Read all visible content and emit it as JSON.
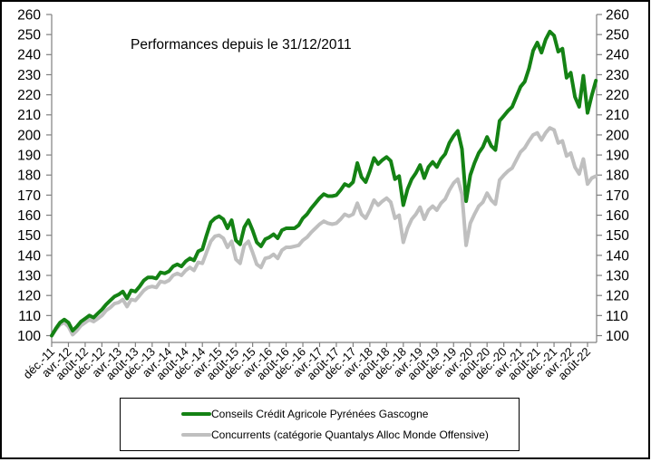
{
  "chart": {
    "title": "Performances depuis le 31/12/2011",
    "y_axis": {
      "min": 100,
      "max": 260,
      "step": 10,
      "ticks": [
        100,
        110,
        120,
        130,
        140,
        150,
        160,
        170,
        180,
        190,
        200,
        210,
        220,
        230,
        240,
        250,
        260
      ]
    },
    "x_axis": {
      "months_per_tick": 4,
      "tick_labels": [
        "déc.-11",
        "avr.-12",
        "août-12",
        "déc.-12",
        "avr.-13",
        "août-13",
        "déc.-13",
        "avr.-14",
        "août-14",
        "déc.-14",
        "avr.-15",
        "août-15",
        "déc.-15",
        "avr.-16",
        "août-16",
        "déc.-16",
        "avr.-17",
        "août-17",
        "déc.-17",
        "avr.-18",
        "août-18",
        "déc.-18",
        "avr.-19",
        "août-19",
        "déc.-19",
        "avr.-20",
        "août-20",
        "déc.-20",
        "avr.-21",
        "août-21",
        "déc.-21",
        "avr.-22",
        "août-22"
      ]
    },
    "axis_color": "#808080",
    "frame_color": "#000000"
  },
  "legend_position": "bottom",
  "chart_data": {
    "type": "line",
    "title": "Performances depuis le 31/12/2011",
    "ylim": [
      100,
      260
    ],
    "y_step": 10,
    "grid": "off",
    "legend_position": "bottom-box",
    "x_start": "déc.-11",
    "x_end": "oct.-22",
    "x_tick_labels": [
      "déc.-11",
      "avr.-12",
      "août-12",
      "déc.-12",
      "avr.-13",
      "août-13",
      "déc.-13",
      "avr.-14",
      "août-14",
      "déc.-14",
      "avr.-15",
      "août-15",
      "déc.-15",
      "avr.-16",
      "août-16",
      "déc.-16",
      "avr.-17",
      "août-17",
      "déc.-17",
      "avr.-18",
      "août-18",
      "déc.-18",
      "avr.-19",
      "août-19",
      "déc.-19",
      "avr.-20",
      "août-20",
      "déc.-20",
      "avr.-21",
      "août-21",
      "déc.-21",
      "avr.-22",
      "août-22"
    ],
    "series": [
      {
        "name": "Conseils Crédit Agricole Pyrénées Gascogne",
        "color": "#148214",
        "values": [
          100,
          103.5,
          106.5,
          108,
          106.5,
          102.5,
          104.5,
          107,
          108.5,
          110,
          109,
          111,
          113,
          115.5,
          117.5,
          119.5,
          120.5,
          122,
          118.5,
          122.5,
          122,
          124.5,
          127.5,
          129,
          129,
          128.5,
          131.5,
          131,
          132,
          134.5,
          135.5,
          134.5,
          137,
          138.5,
          137.5,
          142,
          143,
          150,
          156.5,
          158.5,
          159.5,
          158,
          153.5,
          157.5,
          147.5,
          145.5,
          154,
          157.5,
          152.5,
          146.5,
          144.5,
          148,
          149,
          150.5,
          148.5,
          152.5,
          153.5,
          153.5,
          153.5,
          155,
          158.5,
          160.5,
          163.5,
          166,
          168.5,
          170.5,
          169.5,
          169.5,
          170,
          172.5,
          175.5,
          174.5,
          176.5,
          186,
          179,
          176.5,
          182,
          188.5,
          185.5,
          187.5,
          189,
          187,
          178,
          179.5,
          165,
          173,
          178,
          181,
          185,
          178.5,
          184,
          186.5,
          184,
          188,
          190.5,
          196,
          199.5,
          202,
          193,
          167,
          180,
          186,
          191,
          194,
          199,
          194.5,
          192.5,
          207,
          209.5,
          212,
          214,
          219,
          224,
          226.5,
          233,
          242,
          246,
          241,
          247.5,
          251.5,
          249.5,
          241.5,
          243,
          228.5,
          231,
          219,
          214,
          229.5,
          211,
          219.5,
          227
        ]
      },
      {
        "name": "Concurrents (catégorie Quantalys Alloc Monde Offensive)",
        "color": "#bfbfbf",
        "values": [
          100,
          103,
          105.5,
          106.5,
          104.5,
          100.5,
          102.5,
          105,
          106.5,
          108,
          107,
          108.5,
          110,
          112.5,
          114,
          116,
          116.5,
          118,
          114.5,
          118,
          117.5,
          120,
          122.5,
          124,
          124.5,
          124,
          127,
          126.5,
          127.5,
          130,
          131,
          130,
          132.5,
          134,
          132.5,
          136.5,
          136,
          141.5,
          147,
          149.5,
          150,
          148.5,
          144,
          147,
          138,
          136,
          145,
          147,
          141.5,
          135.5,
          134,
          138.5,
          139,
          140.5,
          138.5,
          142.5,
          144,
          144,
          144.5,
          145,
          147.5,
          149,
          151.5,
          153.5,
          155.5,
          157,
          156,
          155.5,
          156,
          158,
          160.5,
          159.5,
          160.5,
          166,
          160.5,
          158.5,
          162.5,
          167.5,
          165,
          167,
          168.5,
          166.5,
          158.5,
          160,
          146.5,
          153.5,
          158,
          160.5,
          164,
          158,
          162.5,
          164.5,
          162.5,
          166,
          168,
          172.5,
          176,
          178,
          170.5,
          145,
          156,
          160.5,
          164.5,
          166.5,
          171,
          167.5,
          165.5,
          177.5,
          180,
          182,
          183.5,
          187.5,
          191.5,
          193.5,
          197,
          200,
          201,
          197.5,
          201,
          203.5,
          202.5,
          196,
          197,
          189.5,
          191,
          184,
          180.5,
          188,
          175.5,
          178.5,
          179.5
        ]
      }
    ]
  }
}
